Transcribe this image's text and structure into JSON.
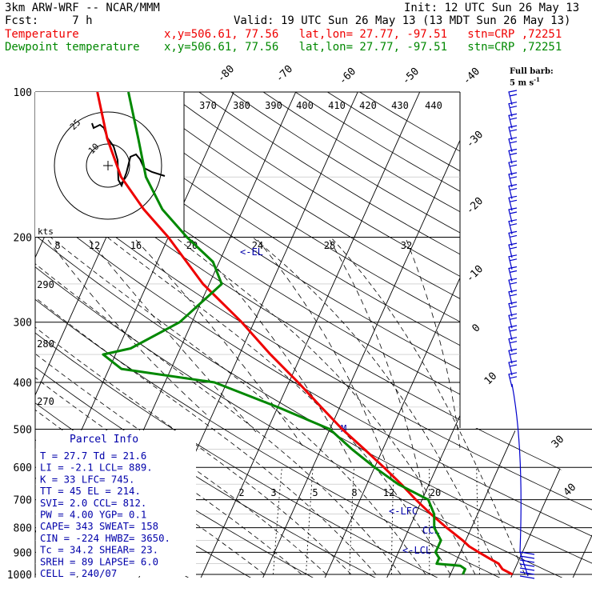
{
  "header": {
    "model": "3km ARW-WRF -- NCAR/MMM",
    "init": "Init: 12 UTC Sun 26 May 13",
    "fcst": "Fcst:     7 h",
    "valid": "Valid: 19 UTC Sun 26 May 13 (13 MDT Sun 26 May 13)",
    "temp_label": "Temperature",
    "temp_loc": "x,y=506.61, 77.56   lat,lon= 27.77, -97.51   stn=CRP ,72251",
    "dew_label": "Dewpoint temperature",
    "dew_loc": "x,y=506.61, 77.56   lat,lon= 27.77, -97.51   stn=CRP ,72251"
  },
  "colors": {
    "temperature": "#ee0000",
    "dewpoint": "#008800",
    "parcel": "#0000aa",
    "barbs": "#0000cc",
    "grid": "#000000"
  },
  "full_barb_label": "Full barb:",
  "full_barb_units": "5 m s",
  "full_barb_exp": "-1",
  "pressure_labels": [
    "100",
    "200",
    "300",
    "400",
    "500",
    "600",
    "700",
    "800",
    "900",
    "1000"
  ],
  "temperature_labels": [
    {
      "t": -80,
      "text": "-80"
    },
    {
      "t": -70,
      "text": "-70"
    },
    {
      "t": -60,
      "text": "-60"
    },
    {
      "t": -50,
      "text": "-50"
    },
    {
      "t": -40,
      "text": "-40"
    },
    {
      "t": -30,
      "text": "-30"
    },
    {
      "t": -20,
      "text": "-20"
    },
    {
      "t": -10,
      "text": "-10"
    },
    {
      "t": 0,
      "text": "0"
    },
    {
      "t": 10,
      "text": "10"
    },
    {
      "t": 30,
      "text": "30"
    },
    {
      "t": 40,
      "text": "40"
    }
  ],
  "theta_labels": [
    "370",
    "380",
    "390",
    "400",
    "410",
    "420",
    "430",
    "440"
  ],
  "theta_labels_lower": [
    "290",
    "280",
    "270"
  ],
  "mixing_ratio_labels": [
    "2",
    "3",
    "5",
    "8",
    "12",
    "20"
  ],
  "hodograph": {
    "units": "kts",
    "ring_labels": [
      "25",
      "10"
    ],
    "speed_labels": [
      "8",
      "12",
      "16",
      "20",
      "24",
      "28",
      "32"
    ]
  },
  "annotations": {
    "el": "<-EL",
    "m": "M",
    "lfc": "<-LFC",
    "ccl": "CCL",
    "lcl": "<-LCL"
  },
  "parcel_info": {
    "title": "Parcel Info",
    "rows": [
      "T  =   27.7  Td =  21.6",
      "LI =   -2.1  LCL=  889.",
      "K  =     33  LFC=  745.",
      "TT =     45  EL =  214.",
      "SVI=    2.0  CCL=  812.",
      "PW =   4.00  YGP=   0.1",
      "CAPE=   343  SWEAT=  158",
      "CIN =  -224  HWBZ= 3650.",
      "Tc =   34.2  SHEAR=  23.",
      "SREH =   89  LAPSE=  6.0",
      "CELL = 240/07"
    ]
  },
  "chart_data": {
    "type": "line",
    "title": "",
    "xlabel": "",
    "ylabel": "",
    "yscale": "log-pressure",
    "ylim": [
      1000,
      100
    ],
    "series": [
      {
        "name": "Temperature",
        "pressure_hPa": [
          1000,
          975,
          950,
          925,
          900,
          875,
          850,
          800,
          750,
          700,
          650,
          600,
          550,
          500,
          450,
          400,
          350,
          300,
          250,
          200,
          175,
          150,
          125,
          100
        ],
        "values_C": [
          30,
          28,
          27,
          25,
          23,
          21,
          19.5,
          16,
          12.5,
          9,
          5.5,
          1.5,
          -3,
          -8,
          -13,
          -18.5,
          -25,
          -32,
          -41,
          -50,
          -56,
          -62,
          -67,
          -72
        ]
      },
      {
        "name": "Dewpoint temperature",
        "pressure_hPa": [
          1000,
          975,
          960,
          950,
          925,
          900,
          875,
          850,
          800,
          750,
          700,
          650,
          600,
          550,
          500,
          450,
          400,
          375,
          350,
          340,
          300,
          250,
          225,
          200,
          175,
          150,
          125,
          100
        ],
        "values_C": [
          22,
          22,
          21,
          17,
          17,
          16,
          16,
          16,
          14,
          13,
          11,
          5,
          0,
          -5,
          -10,
          -20,
          -32,
          -48,
          -52,
          -48,
          -42,
          -38,
          -41,
          -47,
          -53,
          -58,
          -62,
          -67
        ]
      }
    ]
  }
}
